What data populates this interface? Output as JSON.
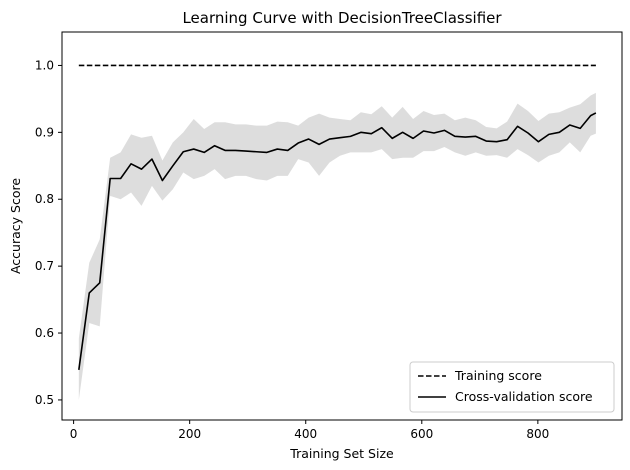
{
  "chart_data": {
    "type": "line",
    "title": "Learning Curve with DecisionTreeClassifier",
    "xlabel": "Training Set Size",
    "ylabel": "Accuracy Score",
    "xlim": [
      -20,
      945
    ],
    "ylim": [
      0.47,
      1.05
    ],
    "xticks": [
      0,
      200,
      400,
      600,
      800
    ],
    "yticks": [
      0.5,
      0.6,
      0.7,
      0.8,
      0.9,
      1.0
    ],
    "xtick_labels": [
      "0",
      "200",
      "400",
      "600",
      "800"
    ],
    "ytick_labels": [
      "0.5",
      "0.6",
      "0.7",
      "0.8",
      "0.9",
      "1.0"
    ],
    "grid": false,
    "legend_position": "bottom-right",
    "band_color": "#dddddd",
    "line_color": "#000000",
    "series": [
      {
        "name": "Training score",
        "style": "dashed",
        "x": [
          9,
          900
        ],
        "y": [
          1.0,
          1.0
        ]
      },
      {
        "name": "Cross-validation score",
        "style": "solid",
        "x": [
          9,
          27,
          45,
          63,
          81,
          99,
          117,
          135,
          153,
          171,
          189,
          207,
          225,
          243,
          261,
          279,
          297,
          315,
          333,
          351,
          369,
          387,
          405,
          423,
          441,
          459,
          477,
          495,
          513,
          531,
          549,
          567,
          585,
          603,
          621,
          639,
          657,
          675,
          693,
          711,
          729,
          747,
          765,
          783,
          801,
          819,
          837,
          855,
          873,
          891,
          900
        ],
        "y": [
          0.545,
          0.66,
          0.675,
          0.831,
          0.831,
          0.853,
          0.845,
          0.86,
          0.828,
          0.85,
          0.871,
          0.875,
          0.87,
          0.88,
          0.873,
          0.873,
          0.872,
          0.871,
          0.87,
          0.875,
          0.873,
          0.884,
          0.89,
          0.882,
          0.89,
          0.892,
          0.894,
          0.9,
          0.898,
          0.907,
          0.891,
          0.9,
          0.891,
          0.902,
          0.899,
          0.903,
          0.894,
          0.893,
          0.894,
          0.887,
          0.886,
          0.889,
          0.909,
          0.899,
          0.886,
          0.897,
          0.9,
          0.911,
          0.906,
          0.925,
          0.929
        ],
        "std_band": {
          "lower": [
            0.5,
            0.615,
            0.61,
            0.805,
            0.8,
            0.81,
            0.79,
            0.82,
            0.798,
            0.815,
            0.84,
            0.83,
            0.835,
            0.845,
            0.83,
            0.835,
            0.835,
            0.83,
            0.828,
            0.835,
            0.835,
            0.86,
            0.855,
            0.835,
            0.855,
            0.865,
            0.87,
            0.87,
            0.87,
            0.875,
            0.86,
            0.862,
            0.862,
            0.872,
            0.872,
            0.878,
            0.87,
            0.865,
            0.87,
            0.865,
            0.866,
            0.862,
            0.875,
            0.866,
            0.855,
            0.865,
            0.87,
            0.885,
            0.87,
            0.895,
            0.898
          ],
          "upper": [
            0.592,
            0.705,
            0.74,
            0.862,
            0.87,
            0.897,
            0.892,
            0.895,
            0.858,
            0.885,
            0.9,
            0.92,
            0.905,
            0.915,
            0.915,
            0.912,
            0.912,
            0.91,
            0.91,
            0.916,
            0.915,
            0.91,
            0.922,
            0.928,
            0.922,
            0.92,
            0.918,
            0.93,
            0.927,
            0.939,
            0.922,
            0.938,
            0.92,
            0.932,
            0.926,
            0.928,
            0.918,
            0.922,
            0.918,
            0.908,
            0.906,
            0.916,
            0.943,
            0.932,
            0.917,
            0.928,
            0.93,
            0.937,
            0.942,
            0.955,
            0.959
          ]
        }
      }
    ]
  }
}
